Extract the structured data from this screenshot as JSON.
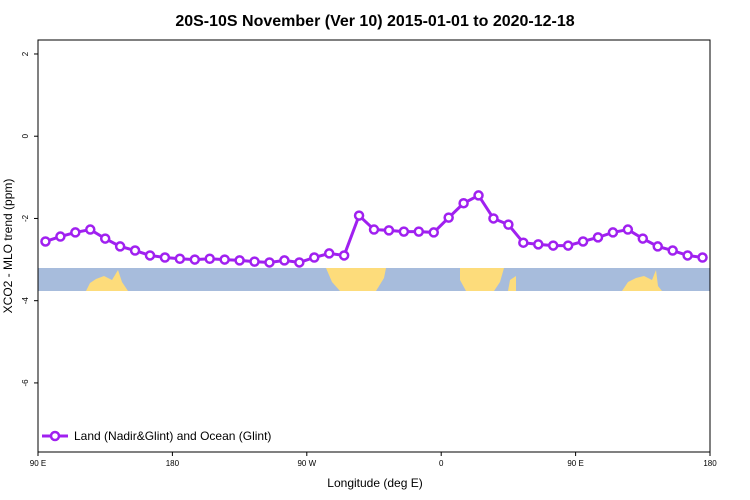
{
  "chart_data": {
    "type": "line",
    "title": "20S-10S November (Ver 10)   2015-01-01 to 2020-12-18",
    "x_label": "Longitude (deg E)",
    "y_label": "XCO2 - MLO trend (ppm)",
    "x": [
      95,
      105,
      115,
      125,
      135,
      145,
      155,
      165,
      175,
      185,
      195,
      205,
      215,
      225,
      235,
      245,
      255,
      265,
      275,
      285,
      295,
      305,
      315,
      325,
      335,
      345,
      355,
      365,
      375,
      385,
      395,
      405,
      415,
      425,
      435,
      445,
      455,
      465,
      475,
      485,
      495,
      505,
      515,
      525,
      535
    ],
    "series": [
      {
        "name": "Land (Nadir&Glint) and Ocean (Glint)",
        "color": "#a020f0",
        "values": [
          -2.56,
          -2.44,
          -2.34,
          -2.27,
          -2.49,
          -2.68,
          -2.78,
          -2.9,
          -2.95,
          -2.98,
          -3.0,
          -2.98,
          -3.0,
          -3.02,
          -3.05,
          -3.07,
          -3.02,
          -3.07,
          -2.95,
          -2.85,
          -2.9,
          -1.93,
          -2.27,
          -2.29,
          -2.32,
          -2.32,
          -2.34,
          -1.98,
          -1.63,
          -1.44,
          -2.0,
          -2.15,
          -2.59,
          -2.63,
          -2.66,
          -2.66,
          -2.56,
          -2.46,
          -2.34,
          -2.27,
          -2.49,
          -2.68,
          -2.78,
          -2.9,
          -2.95
        ]
      }
    ],
    "xlim": [
      90,
      540
    ],
    "xticks": [
      {
        "value": 90,
        "label": "90 E"
      },
      {
        "value": 180,
        "label": "180"
      },
      {
        "value": 270,
        "label": "90 W"
      },
      {
        "value": 360,
        "label": "0"
      },
      {
        "value": 450,
        "label": "90 E"
      },
      {
        "value": 540,
        "label": "180"
      }
    ],
    "ylim": [
      -7.68,
      2.34
    ],
    "yticks": [
      -6,
      -4,
      -2,
      0,
      2
    ],
    "legend": "bottom-left"
  }
}
